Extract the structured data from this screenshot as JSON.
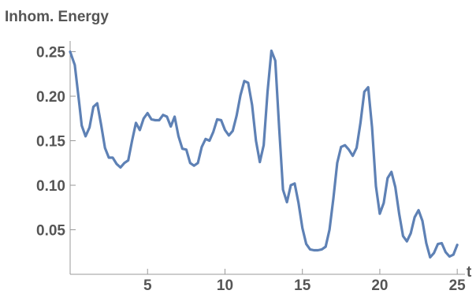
{
  "chart_data": {
    "type": "line",
    "ylabel": "Inhom. Energy",
    "xlabel": "t",
    "xlim": [
      0,
      25.5
    ],
    "ylim": [
      0.0,
      0.262
    ],
    "x_ticks": [
      5,
      10,
      15,
      20,
      25
    ],
    "x_tick_labels": [
      "5",
      "10",
      "15",
      "20",
      "25"
    ],
    "y_ticks": [
      0.05,
      0.1,
      0.15,
      0.2,
      0.25
    ],
    "y_tick_labels": [
      "0.05",
      "0.10",
      "0.15",
      "0.20",
      "0.25"
    ],
    "grid": false,
    "colors": {
      "series": "#5e81b5",
      "axis": "#999999",
      "text": "#555555"
    },
    "series": [
      {
        "x": [
          0,
          0.3,
          0.6,
          0.75,
          1,
          1.25,
          1.5,
          1.75,
          2,
          2.25,
          2.5,
          2.75,
          3,
          3.25,
          3.5,
          3.75,
          4,
          4.25,
          4.5,
          4.75,
          5,
          5.25,
          5.5,
          5.75,
          6,
          6.25,
          6.5,
          6.75,
          7,
          7.25,
          7.5,
          7.75,
          8,
          8.25,
          8.5,
          8.75,
          9,
          9.25,
          9.5,
          9.75,
          10,
          10.25,
          10.5,
          10.75,
          11,
          11.25,
          11.5,
          11.75,
          12,
          12.25,
          12.5,
          12.75,
          13,
          13.25,
          13.5,
          13.75,
          14,
          14.25,
          14.5,
          14.75,
          15,
          15.25,
          15.5,
          15.75,
          16,
          16.25,
          16.5,
          16.75,
          17,
          17.25,
          17.5,
          17.75,
          18,
          18.25,
          18.5,
          18.75,
          19,
          19.25,
          19.5,
          19.75,
          20,
          20.25,
          20.5,
          20.75,
          21,
          21.25,
          21.5,
          21.75,
          22,
          22.25,
          22.5,
          22.75,
          23,
          23.25,
          23.5,
          23.75,
          24,
          24.25,
          24.5,
          24.75,
          25
        ],
        "values": [
          0.25,
          0.235,
          0.19,
          0.167,
          0.155,
          0.165,
          0.188,
          0.192,
          0.168,
          0.142,
          0.131,
          0.131,
          0.124,
          0.12,
          0.125,
          0.128,
          0.15,
          0.17,
          0.162,
          0.175,
          0.181,
          0.174,
          0.173,
          0.173,
          0.179,
          0.177,
          0.166,
          0.177,
          0.155,
          0.141,
          0.14,
          0.125,
          0.122,
          0.125,
          0.143,
          0.152,
          0.15,
          0.16,
          0.174,
          0.173,
          0.162,
          0.156,
          0.161,
          0.178,
          0.201,
          0.217,
          0.215,
          0.19,
          0.15,
          0.126,
          0.145,
          0.205,
          0.251,
          0.24,
          0.165,
          0.095,
          0.081,
          0.1,
          0.102,
          0.08,
          0.052,
          0.034,
          0.028,
          0.027,
          0.027,
          0.028,
          0.031,
          0.05,
          0.085,
          0.125,
          0.143,
          0.145,
          0.14,
          0.133,
          0.142,
          0.17,
          0.205,
          0.21,
          0.165,
          0.099,
          0.068,
          0.08,
          0.108,
          0.115,
          0.098,
          0.068,
          0.043,
          0.037,
          0.046,
          0.064,
          0.072,
          0.06,
          0.035,
          0.019,
          0.024,
          0.034,
          0.035,
          0.025,
          0.02,
          0.022,
          0.033
        ]
      }
    ]
  }
}
